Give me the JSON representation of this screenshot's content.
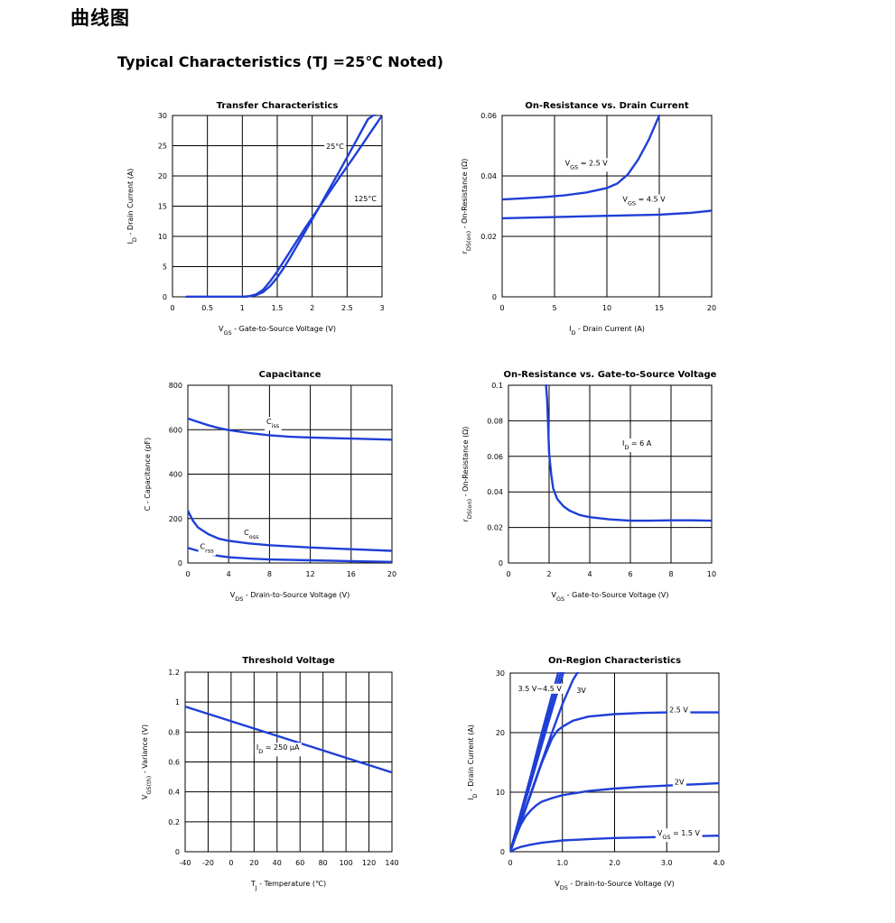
{
  "page": {
    "title": "曲线图",
    "subtitle": "Typical Characteristics (TJ =25℃ Noted)"
  },
  "colors": {
    "curve": "#1f3fd6",
    "grid": "#000000",
    "text": "#000000"
  },
  "chart_data": [
    {
      "id": "transfer",
      "type": "line",
      "title": "Transfer Characteristics",
      "xlabel": "V_GS - Gate-to-Source Voltage (V)",
      "ylabel": "I_D - Drain Current (A)",
      "xlim": [
        0,
        3
      ],
      "ylim": [
        0,
        30
      ],
      "xticks": [
        0,
        0.5,
        1,
        1.5,
        2,
        2.5,
        3
      ],
      "yticks": [
        0,
        5,
        10,
        15,
        20,
        25,
        30
      ],
      "xtick_labels": [
        "0",
        "0.5",
        "1",
        "1.5",
        "2",
        "2.5",
        "3"
      ],
      "ytick_labels": [
        "0",
        "5",
        "10",
        "15",
        "20",
        "25",
        "30"
      ],
      "series": [
        {
          "name": "25°C",
          "x": [
            0.2,
            1.0,
            1.1,
            1.2,
            1.3,
            1.4,
            1.5,
            1.6,
            1.7,
            1.8,
            1.9,
            2.0,
            2.2,
            2.4,
            2.6,
            2.8,
            3.0
          ],
          "y": [
            0,
            0,
            0.1,
            0.3,
            0.8,
            1.8,
            3.2,
            4.9,
            6.8,
            8.8,
            10.8,
            12.8,
            16.9,
            21.0,
            25.2,
            29.4,
            31.0
          ]
        },
        {
          "name": "125°C",
          "x": [
            0.2,
            1.0,
            1.1,
            1.2,
            1.3,
            1.4,
            1.5,
            1.6,
            1.7,
            1.8,
            1.9,
            2.0,
            2.2,
            2.4,
            2.6,
            2.8,
            3.0
          ],
          "y": [
            0,
            0,
            0.1,
            0.4,
            1.2,
            2.6,
            4.2,
            6.0,
            7.8,
            9.6,
            11.4,
            13.1,
            16.5,
            19.9,
            23.2,
            26.6,
            30.0
          ]
        }
      ],
      "annotations": [
        {
          "text": "25°C",
          "x": 2.2,
          "y": 24.5
        },
        {
          "text": "125°C",
          "x": 2.6,
          "y": 15.8
        }
      ]
    },
    {
      "id": "rds_vs_id",
      "type": "line",
      "title": "On-Resistance vs. Drain Current",
      "xlabel": "I_D - Drain Current (A)",
      "ylabel": "r_DS(on) - On-Resistance (Ω)",
      "xlim": [
        0,
        20
      ],
      "ylim": [
        0,
        0.06
      ],
      "xticks": [
        0,
        5,
        10,
        15,
        20
      ],
      "yticks": [
        0,
        0.02,
        0.04,
        0.06
      ],
      "xtick_labels": [
        "0",
        "5",
        "10",
        "15",
        "20"
      ],
      "ytick_labels": [
        "0",
        "0.02",
        "0.04",
        "0.06"
      ],
      "series": [
        {
          "name": "VGS = 2.5 V",
          "x": [
            0,
            2,
            4,
            6,
            8,
            10,
            11,
            12,
            13,
            14,
            15
          ],
          "y": [
            0.0322,
            0.0326,
            0.033,
            0.0336,
            0.0345,
            0.036,
            0.0375,
            0.0405,
            0.0455,
            0.052,
            0.06
          ]
        },
        {
          "name": "VGS = 4.5 V",
          "x": [
            0,
            5,
            10,
            15,
            18,
            20
          ],
          "y": [
            0.026,
            0.0264,
            0.0268,
            0.0272,
            0.0278,
            0.0285
          ]
        }
      ],
      "annotations": [
        {
          "text": "V_GS = 2.5 V",
          "x": 6.0,
          "y": 0.0435
        },
        {
          "text": "V_GS = 4.5 V",
          "x": 11.5,
          "y": 0.0315
        }
      ]
    },
    {
      "id": "capacitance",
      "type": "line",
      "title": "Capacitance",
      "xlabel": "V_DS - Drain-to-Source Voltage (V)",
      "ylabel": "C - Capacitance (pF)",
      "xlim": [
        0,
        20
      ],
      "ylim": [
        0,
        800
      ],
      "xticks": [
        0,
        4,
        8,
        12,
        16,
        20
      ],
      "yticks": [
        0,
        200,
        400,
        600,
        800
      ],
      "xtick_labels": [
        "0",
        "4",
        "8",
        "12",
        "16",
        "20"
      ],
      "ytick_labels": [
        "0",
        "200",
        "400",
        "600",
        "800"
      ],
      "series": [
        {
          "name": "Ciss",
          "x": [
            0,
            1,
            2,
            3,
            4,
            6,
            8,
            10,
            12,
            16,
            20
          ],
          "y": [
            650,
            635,
            620,
            608,
            598,
            585,
            575,
            568,
            565,
            560,
            555
          ]
        },
        {
          "name": "Coss",
          "x": [
            0,
            0.5,
            1,
            2,
            3,
            4,
            6,
            8,
            12,
            16,
            20
          ],
          "y": [
            235,
            190,
            160,
            130,
            110,
            100,
            88,
            80,
            70,
            62,
            55
          ]
        },
        {
          "name": "Crss",
          "x": [
            0,
            1,
            2,
            3,
            4,
            6,
            8,
            12,
            16,
            20
          ],
          "y": [
            68,
            55,
            42,
            32,
            26,
            20,
            16,
            12,
            8,
            5
          ]
        }
      ],
      "annotations": [
        {
          "text": "C_iss",
          "x": 7.7,
          "y": 625
        },
        {
          "text": "C_oss",
          "x": 5.5,
          "y": 125
        },
        {
          "text": "C_rss",
          "x": 1.2,
          "y": 62
        }
      ]
    },
    {
      "id": "rds_vs_vgs",
      "type": "line",
      "title": "On-Resistance vs. Gate-to-Source Voltage",
      "xlabel": "V_GS - Gate-to-Source Voltage (V)",
      "ylabel": "r_DS(on) - On-Resistance (Ω)",
      "xlim": [
        0,
        10
      ],
      "ylim": [
        0,
        0.1
      ],
      "xticks": [
        0,
        2,
        4,
        6,
        8,
        10
      ],
      "yticks": [
        0,
        0.02,
        0.04,
        0.06,
        0.08,
        0.1
      ],
      "xtick_labels": [
        "0",
        "2",
        "4",
        "6",
        "8",
        "10"
      ],
      "ytick_labels": [
        "0",
        "0.02",
        "0.04",
        "0.06",
        "0.08",
        "0.1"
      ],
      "series": [
        {
          "name": "ID = 6 A",
          "x": [
            1.85,
            1.9,
            1.95,
            2.0,
            2.1,
            2.2,
            2.4,
            2.7,
            3.0,
            3.5,
            4.0,
            5.0,
            6.0,
            7.0,
            8.0,
            9.0,
            10.0
          ],
          "y": [
            0.1,
            0.092,
            0.078,
            0.062,
            0.05,
            0.042,
            0.036,
            0.032,
            0.0295,
            0.027,
            0.0258,
            0.0245,
            0.0238,
            0.0238,
            0.024,
            0.024,
            0.0238
          ]
        }
      ],
      "annotations": [
        {
          "text": "I_D = 6 A",
          "x": 5.6,
          "y": 0.066
        }
      ]
    },
    {
      "id": "threshold",
      "type": "line",
      "title": "Threshold Voltage",
      "xlabel": "T_J - Temperature (℃)",
      "ylabel": "V_GS(th) - Variance (V)",
      "xlim": [
        -40,
        140
      ],
      "ylim": [
        0,
        1.2
      ],
      "xticks": [
        -40,
        -20,
        0,
        20,
        40,
        60,
        80,
        100,
        120,
        140
      ],
      "yticks": [
        0,
        0.2,
        0.4,
        0.6,
        0.8,
        1.0,
        1.2
      ],
      "xtick_labels": [
        "-40",
        "-20",
        "0",
        "20",
        "40",
        "60",
        "80",
        "100",
        "120",
        "140"
      ],
      "ytick_labels": [
        "0",
        "0.2",
        "0.4",
        "0.6",
        "0.8",
        "1",
        "1.2"
      ],
      "series": [
        {
          "name": "ID = 250μA",
          "x": [
            -40,
            140
          ],
          "y": [
            0.97,
            0.53
          ]
        }
      ],
      "annotations": [
        {
          "text": "I_D = 250 μA",
          "x": 22,
          "y": 0.68
        }
      ]
    },
    {
      "id": "on_region",
      "type": "line",
      "title": "On-Region Characteristics",
      "xlabel": "V_DS - Drain-to-Source Voltage (V)",
      "ylabel": "I_D - Drain Current (A)",
      "xlim": [
        0,
        4.0
      ],
      "ylim": [
        0,
        30
      ],
      "xticks": [
        0,
        1.0,
        2.0,
        3.0,
        4.0
      ],
      "yticks": [
        0,
        10,
        20,
        30
      ],
      "xtick_labels": [
        "0",
        "1.0",
        "2.0",
        "3.0",
        "4.0"
      ],
      "ytick_labels": [
        "0",
        "10",
        "20",
        "30"
      ],
      "series": [
        {
          "name": "3.5 V~4.5 V a",
          "x": [
            0,
            0.2,
            0.4,
            0.6,
            0.8,
            0.95
          ],
          "y": [
            0,
            6.5,
            13.0,
            19.8,
            26.3,
            31.0
          ]
        },
        {
          "name": "3.5 V~4.5 V b",
          "x": [
            0,
            0.2,
            0.4,
            0.6,
            0.8,
            1.0
          ],
          "y": [
            0,
            6.2,
            12.4,
            18.8,
            25.0,
            31.0
          ]
        },
        {
          "name": "3.5 V~4.5 V c",
          "x": [
            0,
            0.2,
            0.4,
            0.6,
            0.8,
            1.0,
            1.05
          ],
          "y": [
            0,
            5.9,
            11.8,
            17.8,
            23.8,
            29.6,
            31.0
          ]
        },
        {
          "name": "3V",
          "x": [
            0,
            0.2,
            0.4,
            0.6,
            0.8,
            1.0,
            1.2,
            1.35
          ],
          "y": [
            0,
            5.0,
            10.0,
            15.0,
            20.0,
            24.8,
            28.8,
            31.0
          ]
        },
        {
          "name": "2.5 V",
          "x": [
            0,
            0.2,
            0.4,
            0.6,
            0.8,
            0.9,
            1.0,
            1.2,
            1.5,
            2.0,
            2.5,
            3.0,
            3.5,
            4.0
          ],
          "y": [
            0,
            4.8,
            9.8,
            14.8,
            19.0,
            20.3,
            21.0,
            22.0,
            22.7,
            23.1,
            23.3,
            23.4,
            23.4,
            23.4
          ]
        },
        {
          "name": "2V",
          "x": [
            0,
            0.1,
            0.2,
            0.3,
            0.4,
            0.5,
            0.6,
            0.8,
            1.0,
            1.5,
            2.0,
            2.5,
            3.0,
            3.5,
            4.0
          ],
          "y": [
            0,
            2.5,
            4.5,
            6.0,
            7.0,
            7.8,
            8.4,
            9.0,
            9.5,
            10.2,
            10.6,
            10.9,
            11.1,
            11.3,
            11.5
          ]
        },
        {
          "name": "VGS = 1.5 V",
          "x": [
            0,
            0.1,
            0.2,
            0.4,
            0.6,
            0.8,
            1.0,
            1.5,
            2.0,
            2.5,
            3.0,
            3.5,
            4.0
          ],
          "y": [
            0,
            0.5,
            0.8,
            1.2,
            1.5,
            1.7,
            1.9,
            2.1,
            2.3,
            2.4,
            2.5,
            2.6,
            2.7
          ]
        }
      ],
      "annotations": [
        {
          "text": "3.5 V~4.5 V",
          "x": 0.15,
          "y": 27.0
        },
        {
          "text": "3V",
          "x": 1.27,
          "y": 26.7
        },
        {
          "text": "2.5 V",
          "x": 3.05,
          "y": 23.4
        },
        {
          "text": "2V",
          "x": 3.15,
          "y": 11.3
        },
        {
          "text": "V_GS = 1.5 V",
          "x": 2.82,
          "y": 2.7
        }
      ]
    }
  ]
}
